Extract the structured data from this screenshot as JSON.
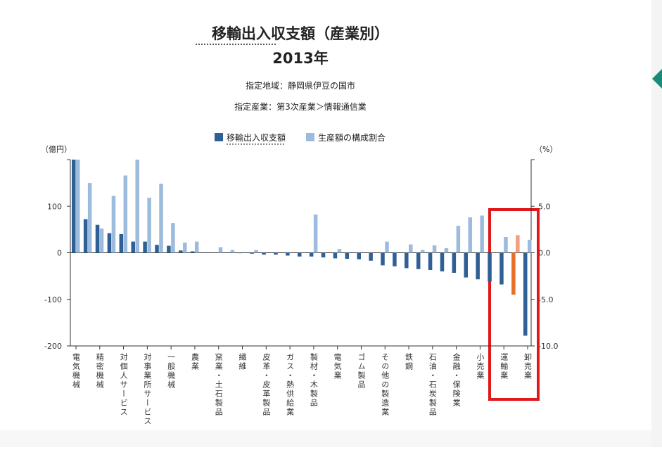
{
  "chart_data": {
    "type": "bar",
    "title": "移輸出入収支額（産業別）",
    "subtitle": "2013年",
    "notes": [
      "指定地域：静岡県伊豆の国市",
      "指定産業：第3次産業＞情報通信業"
    ],
    "y_label": "（億円）",
    "y2_label": "（%）",
    "categories": [
      "電気機械",
      null,
      "精密機械",
      null,
      "対個人サービス",
      null,
      "対事業所サービス",
      null,
      "一般機械",
      null,
      "農業",
      null,
      "窯業・土石製品",
      null,
      "繊維",
      null,
      "皮革・皮革製品",
      null,
      "ガス・熱供給業",
      null,
      "製材・木製品",
      null,
      "電気業",
      null,
      "ゴム製品",
      null,
      "その他の製造業",
      null,
      "鉄鋼",
      null,
      "石油・石炭製品",
      null,
      "金融・保険業",
      null,
      "小売業",
      null,
      "運輸業",
      null,
      "卸売業"
    ],
    "series": [
      {
        "name": "移輸出入収支額",
        "color": "#2e5f95",
        "highlight_color": "#e8702a",
        "values": [
          200,
          72,
          60,
          42,
          40,
          24,
          24,
          17,
          15,
          5,
          3,
          1,
          0,
          0,
          -1,
          -2,
          -4,
          -4,
          -6,
          -8,
          -8,
          -10,
          -12,
          -13,
          -14,
          -17,
          -27,
          -29,
          -33,
          -35,
          -37,
          -40,
          -43,
          -53,
          -57,
          -62,
          -68,
          -90,
          -178
        ]
      },
      {
        "name": "生産額の構成割合",
        "color": "#9dbbdc",
        "highlight_color": "#f0a080",
        "axis": "y2",
        "values": [
          10,
          7.5,
          2.6,
          6.1,
          8.3,
          10,
          5.9,
          7.4,
          3.2,
          1.1,
          1.2,
          0,
          0.6,
          0.3,
          0,
          0.3,
          0,
          0,
          0,
          0,
          4.1,
          0,
          0.4,
          0,
          0,
          0,
          1.2,
          0,
          0.9,
          0.3,
          0.8,
          0.5,
          2.9,
          3.8,
          4,
          0,
          1.7,
          1.9,
          1.4
        ]
      }
    ],
    "highlight_index": 37,
    "ylim": [
      -200,
      200
    ],
    "yticks": [
      -200,
      -100,
      0,
      100
    ],
    "y2lim": [
      -10,
      10
    ],
    "y2ticks": [
      {
        "value": -10,
        "label": "-10.0"
      },
      {
        "value": -5,
        "label": "-5.0"
      },
      {
        "value": 0,
        "label": "0.0"
      },
      {
        "value": 5,
        "label": "5.0"
      }
    ]
  }
}
